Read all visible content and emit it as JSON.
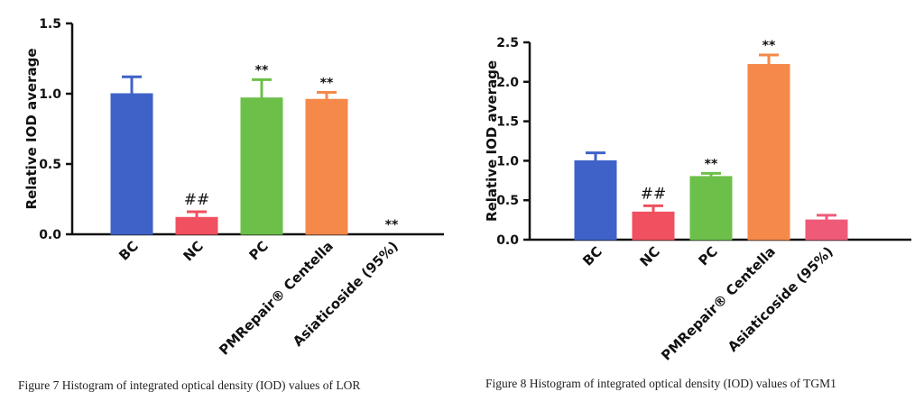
{
  "chart_data": [
    {
      "type": "bar",
      "ylabel": "Relative IOD average",
      "ylim": [
        0,
        1.5
      ],
      "yticks": [
        "0.0",
        "0.5",
        "1.0",
        "1.5"
      ],
      "categories": [
        "BC",
        "NC",
        "PC",
        "PMRepair® Centella",
        "Asiaticoside (95%)"
      ],
      "values": [
        1.0,
        0.12,
        0.97,
        0.96,
        0.0
      ],
      "errors": [
        0.12,
        0.04,
        0.13,
        0.05,
        0.0
      ],
      "annotations": [
        "",
        "##",
        "**",
        "**",
        "**"
      ],
      "colors": [
        "#3f62c9",
        "#f0505f",
        "#6cc04a",
        "#f5894a",
        "#ef5a78"
      ],
      "grid": false,
      "caption": "Figure 7 Histogram of integrated optical density (IOD) values of LOR"
    },
    {
      "type": "bar",
      "ylabel": "Relative IOD average",
      "ylim": [
        0,
        2.5
      ],
      "yticks": [
        "0.0",
        "0.5",
        "1.0",
        "1.5",
        "2.0",
        "2.5"
      ],
      "categories": [
        "BC",
        "NC",
        "PC",
        "PMRepair® Centella",
        "Asiaticoside (95%)"
      ],
      "values": [
        1.0,
        0.35,
        0.8,
        2.22,
        0.25
      ],
      "errors": [
        0.1,
        0.08,
        0.04,
        0.12,
        0.06
      ],
      "annotations": [
        "",
        "##",
        "**",
        "**",
        ""
      ],
      "colors": [
        "#3f62c9",
        "#f0505f",
        "#6cc04a",
        "#f5894a",
        "#ef5a78"
      ],
      "grid": false,
      "caption": "Figure 8 Histogram of integrated optical density (IOD) values of TGM1"
    }
  ]
}
